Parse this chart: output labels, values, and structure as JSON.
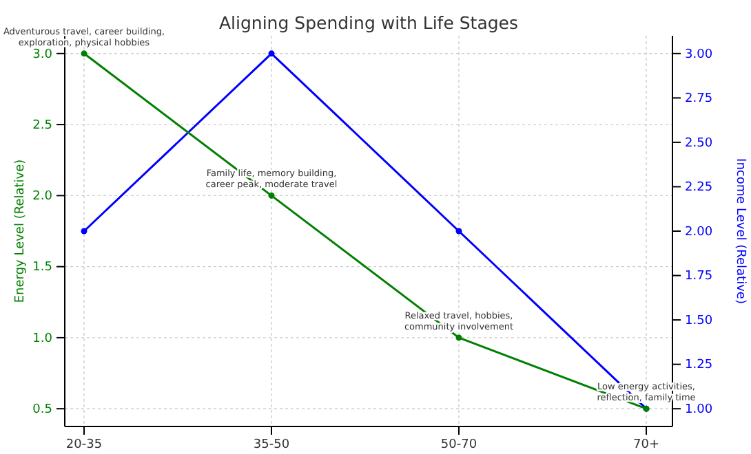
{
  "chart_data": {
    "type": "line",
    "title": "Aligning Spending with Life Stages",
    "categories": [
      "20-35",
      "35-50",
      "50-70",
      "70+"
    ],
    "series": [
      {
        "color": "#008000",
        "values": [
          3.0,
          2.0,
          1.0,
          0.5
        ]
      },
      {
        "color": "#0000ff",
        "values": [
          2.0,
          3.0,
          2.0,
          1.0
        ],
        "axis": "y2"
      }
    ],
    "ylabel": "Energy Level (Relative)",
    "y2label": "Income Level (Relative)",
    "ylim": [
      0.375,
      3.125
    ],
    "yticks": [
      {
        "value": 0.5,
        "label": "0.5"
      },
      {
        "value": 1,
        "label": "1.0"
      },
      {
        "value": 1.5,
        "label": "1.5"
      },
      {
        "value": 2,
        "label": "2.0"
      },
      {
        "value": 2.5,
        "label": "2.5"
      },
      {
        "value": 3,
        "label": "3.0"
      }
    ],
    "y2lim": [
      0.9,
      3.1
    ],
    "y2ticks": [
      {
        "value": 1,
        "label": "1.00"
      },
      {
        "value": 1.25,
        "label": "1.25"
      },
      {
        "value": 1.5,
        "label": "1.50"
      },
      {
        "value": 1.75,
        "label": "1.75"
      },
      {
        "value": 2,
        "label": "2.00"
      },
      {
        "value": 2.25,
        "label": "2.25"
      },
      {
        "value": 2.5,
        "label": "2.50"
      },
      {
        "value": 2.75,
        "label": "2.75"
      },
      {
        "value": 3,
        "label": "3.00"
      }
    ],
    "annotations": [
      {
        "text": "Adventurous travel, career building,\nexploration, physical hobbies",
        "x": "20-35",
        "y": 3.0
      },
      {
        "text": "Family life, memory building,\ncareer peak, moderate travel",
        "x": "35-50",
        "y": 2.0
      },
      {
        "text": "Relaxed travel, hobbies,\ncommunity involvement",
        "x": "50-70",
        "y": 1.0
      },
      {
        "text": "Low energy activities,\nreflection, family time",
        "x": "70+",
        "y": 0.5
      }
    ],
    "grid": true,
    "marker": "circle",
    "line_style": "solid",
    "legend": false
  }
}
